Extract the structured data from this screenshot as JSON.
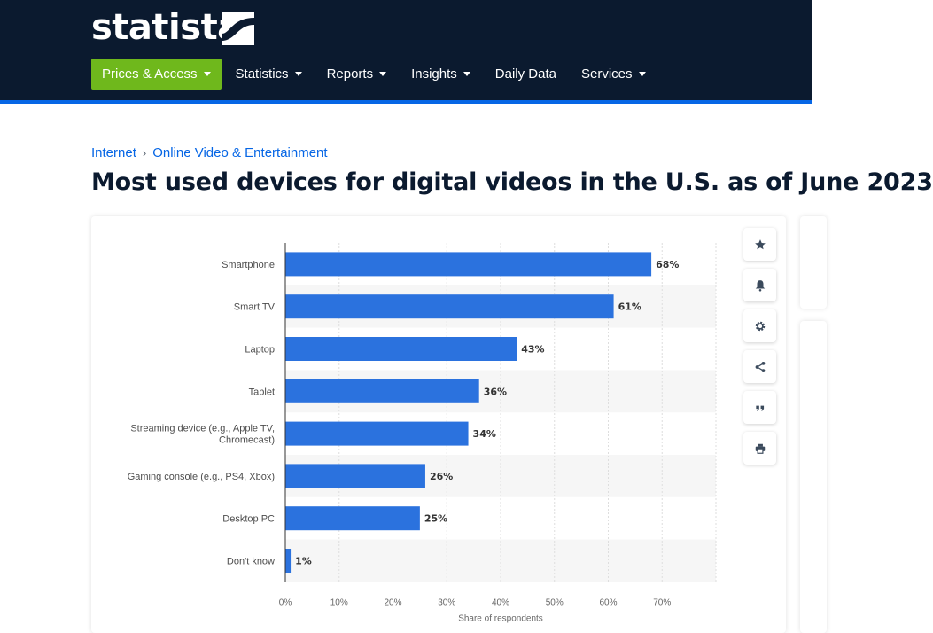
{
  "header": {
    "logo_text": "statista",
    "nav": [
      {
        "label": "Prices & Access",
        "caret": true
      },
      {
        "label": "Statistics",
        "caret": true
      },
      {
        "label": "Reports",
        "caret": true
      },
      {
        "label": "Insights",
        "caret": true
      },
      {
        "label": "Daily Data",
        "caret": false
      },
      {
        "label": "Services",
        "caret": true
      }
    ],
    "colors": {
      "background": "#0b1a2f",
      "primary_button": "#6fb81c",
      "accent": "#0666e5"
    }
  },
  "breadcrumb": [
    "Internet",
    "Online Video & Entertainment"
  ],
  "page_title": "Most used devices for digital videos in the U.S. as of June 2023",
  "tools": [
    {
      "icon": "star-icon",
      "action": "favorite"
    },
    {
      "icon": "bell-icon",
      "action": "notify"
    },
    {
      "icon": "gear-icon",
      "action": "settings"
    },
    {
      "icon": "share-icon",
      "action": "share"
    },
    {
      "icon": "quote-icon",
      "action": "cite"
    },
    {
      "icon": "print-icon",
      "action": "print"
    }
  ],
  "chart_data": {
    "type": "bar",
    "orientation": "horizontal",
    "categories": [
      "Smartphone",
      "Smart TV",
      "Laptop",
      "Tablet",
      "Streaming device (e.g., Apple TV, Chromecast)",
      "Gaming console (e.g., PS4, Xbox)",
      "Desktop PC",
      "Don't know"
    ],
    "category_lines": [
      [
        "Smartphone"
      ],
      [
        "Smart TV"
      ],
      [
        "Laptop"
      ],
      [
        "Tablet"
      ],
      [
        "Streaming device (e.g., Apple TV,",
        "Chromecast)"
      ],
      [
        "Gaming console (e.g., PS4, Xbox)"
      ],
      [
        "Desktop PC"
      ],
      [
        "Don't know"
      ]
    ],
    "values": [
      68,
      61,
      43,
      36,
      34,
      26,
      25,
      1
    ],
    "value_labels": [
      "68%",
      "61%",
      "43%",
      "36%",
      "34%",
      "26%",
      "25%",
      "1%"
    ],
    "xlim": [
      0,
      80
    ],
    "ticks": [
      0,
      10,
      20,
      30,
      40,
      50,
      60,
      70
    ],
    "tick_labels": [
      "0%",
      "10%",
      "20%",
      "30%",
      "40%",
      "50%",
      "60%",
      "70%"
    ],
    "xlabel": "Share of respondents",
    "ylabel": "",
    "bar_color": "#2b72de",
    "grid": true,
    "alternating_row_shading": true,
    "legend": false
  }
}
